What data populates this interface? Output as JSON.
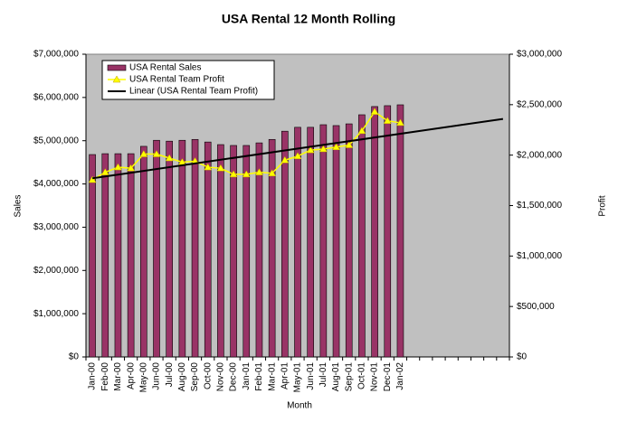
{
  "chart_data": {
    "type": "bar-line",
    "title": "USA Rental 12 Month Rolling",
    "x_label": "Month",
    "y_label": "Sales",
    "y2_label": "Profit",
    "categories": [
      "Jan-00",
      "Feb-00",
      "Mar-00",
      "Apr-00",
      "May-00",
      "Jun-00",
      "Jul-00",
      "Aug-00",
      "Sep-00",
      "Oct-00",
      "Nov-00",
      "Dec-00",
      "Jan-01",
      "Feb-01",
      "Mar-01",
      "Apr-01",
      "May-01",
      "Jun-01",
      "Jul-01",
      "Aug-01",
      "Sep-01",
      "Oct-01",
      "Nov-01",
      "Dec-01",
      "Jan-02",
      null,
      null,
      null,
      null,
      null,
      null,
      null,
      null
    ],
    "series": [
      {
        "name": "USA Rental Sales",
        "type": "bar",
        "color": "#993366",
        "values": [
          4680000,
          4700000,
          4700000,
          4700000,
          4870000,
          5010000,
          4990000,
          5010000,
          5030000,
          4970000,
          4910000,
          4890000,
          4890000,
          4950000,
          5030000,
          5220000,
          5310000,
          5310000,
          5370000,
          5350000,
          5390000,
          5600000,
          5790000,
          5810000,
          5830000,
          null,
          null,
          null,
          null,
          null,
          null,
          null,
          null
        ]
      },
      {
        "name": "USA Rental Team Profit",
        "type": "line",
        "color": "#ffff00",
        "axis": "y2",
        "values": [
          1755000,
          1830000,
          1880000,
          1870000,
          2010000,
          2010000,
          1970000,
          1930000,
          1940000,
          1880000,
          1870000,
          1810000,
          1810000,
          1830000,
          1820000,
          1950000,
          1990000,
          2050000,
          2060000,
          2080000,
          2100000,
          2240000,
          2430000,
          2340000,
          2320000,
          null,
          null,
          null,
          null,
          null,
          null,
          null,
          null
        ]
      }
    ],
    "trendline": {
      "name": "Linear (USA Rental Team Profit)",
      "color": "#000000"
    },
    "ylim": [
      0,
      7000000
    ],
    "yticks": [
      {
        "value": 0,
        "label": "$0"
      },
      {
        "value": 1000000,
        "label": "$1,000,000"
      },
      {
        "value": 2000000,
        "label": "$2,000,000"
      },
      {
        "value": 3000000,
        "label": "$3,000,000"
      },
      {
        "value": 4000000,
        "label": "$4,000,000"
      },
      {
        "value": 5000000,
        "label": "$5,000,000"
      },
      {
        "value": 6000000,
        "label": "$6,000,000"
      },
      {
        "value": 7000000,
        "label": "$7,000,000"
      }
    ],
    "y2lim": [
      0,
      3000000
    ],
    "y2ticks": [
      {
        "value": 0,
        "label": "$0"
      },
      {
        "value": 500000,
        "label": "$500,000"
      },
      {
        "value": 1000000,
        "label": "$1,000,000"
      },
      {
        "value": 1500000,
        "label": "$1,500,000"
      },
      {
        "value": 2000000,
        "label": "$2,000,000"
      },
      {
        "value": 2500000,
        "label": "$2,500,000"
      },
      {
        "value": 3000000,
        "label": "$3,000,000"
      }
    ],
    "grid": false,
    "legend": "top-left"
  }
}
